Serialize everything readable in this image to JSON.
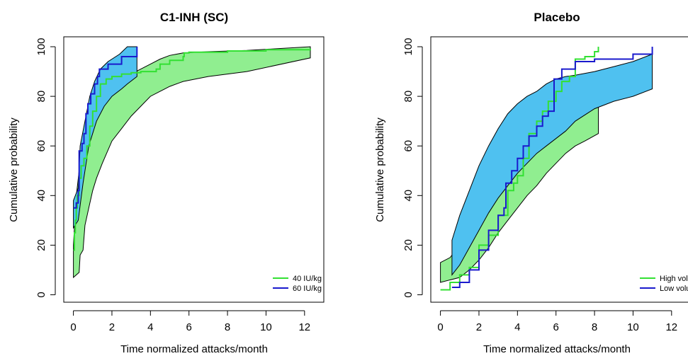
{
  "chart_data": [
    {
      "type": "line",
      "title": "C1-INH (SC)",
      "xlabel": "Time normalized attacks/month",
      "ylabel": "Cumulative probability",
      "xlim": [
        -0.5,
        13
      ],
      "ylim": [
        -3,
        104
      ],
      "xticks": [
        "0",
        "2",
        "4",
        "6",
        "8",
        "10",
        "12"
      ],
      "yticks": [
        "0",
        "20",
        "40",
        "60",
        "80",
        "100"
      ],
      "legend_position": "bottom-right",
      "series": [
        {
          "name": "40 IU/kg",
          "color": "#33e033",
          "band_color": "#90ee90",
          "line": [
            [
              0,
              18
            ],
            [
              0.05,
              25
            ],
            [
              0.1,
              30
            ],
            [
              0.15,
              35
            ],
            [
              0.2,
              40
            ],
            [
              0.3,
              47
            ],
            [
              0.4,
              52
            ],
            [
              0.55,
              55
            ],
            [
              0.7,
              60
            ],
            [
              0.85,
              68
            ],
            [
              1.0,
              74
            ],
            [
              1.2,
              80
            ],
            [
              1.4,
              85
            ],
            [
              1.7,
              87
            ],
            [
              2,
              88
            ],
            [
              2.5,
              89
            ],
            [
              3,
              89.5
            ],
            [
              3.5,
              90
            ],
            [
              4,
              90
            ],
            [
              4.3,
              91
            ],
            [
              4.5,
              93
            ],
            [
              5,
              94.5
            ],
            [
              5.7,
              96
            ],
            [
              5.75,
              97.5
            ],
            [
              6,
              97.8
            ],
            [
              8,
              98.3
            ],
            [
              10,
              98.8
            ],
            [
              12.3,
              99.2
            ]
          ],
          "band_upper": [
            [
              0,
              20
            ],
            [
              0.15,
              40
            ],
            [
              0.3,
              50
            ],
            [
              0.6,
              62
            ],
            [
              0.9,
              70
            ],
            [
              1.2,
              75
            ],
            [
              1.6,
              80
            ],
            [
              2,
              84
            ],
            [
              2.5,
              87
            ],
            [
              3,
              89
            ],
            [
              3.5,
              91
            ],
            [
              4,
              93
            ],
            [
              4.5,
              95
            ],
            [
              5,
              96.5
            ],
            [
              5.7,
              97.5
            ],
            [
              7,
              98
            ],
            [
              9,
              98.5
            ],
            [
              12.3,
              100
            ]
          ],
          "band_lower": [
            [
              0,
              7
            ],
            [
              0.3,
              9
            ],
            [
              0.35,
              16
            ],
            [
              0.5,
              18
            ],
            [
              0.6,
              28
            ],
            [
              0.8,
              35
            ],
            [
              1.0,
              42
            ],
            [
              1.2,
              47
            ],
            [
              1.5,
              53
            ],
            [
              2,
              62
            ],
            [
              2.5,
              67
            ],
            [
              3,
              72
            ],
            [
              3.5,
              76
            ],
            [
              4,
              80
            ],
            [
              4.5,
              82
            ],
            [
              5,
              84
            ],
            [
              5.7,
              86
            ],
            [
              7,
              88
            ],
            [
              9,
              90
            ],
            [
              12.3,
              95.5
            ]
          ]
        },
        {
          "name": "60 IU/kg",
          "color": "#1a1acd",
          "band_color": "#4fc1f0",
          "line": [
            [
              0,
              35
            ],
            [
              0.15,
              37
            ],
            [
              0.25,
              42
            ],
            [
              0.3,
              58
            ],
            [
              0.45,
              61
            ],
            [
              0.55,
              65
            ],
            [
              0.65,
              73
            ],
            [
              0.75,
              77
            ],
            [
              0.9,
              81
            ],
            [
              1.1,
              85
            ],
            [
              1.25,
              88
            ],
            [
              1.35,
              91
            ],
            [
              1.8,
              93
            ],
            [
              2.5,
              96
            ],
            [
              3.3,
              100
            ]
          ],
          "band_upper": [
            [
              0,
              38
            ],
            [
              0.25,
              43
            ],
            [
              0.35,
              60
            ],
            [
              0.6,
              70
            ],
            [
              0.85,
              80
            ],
            [
              1.1,
              86
            ],
            [
              1.4,
              91
            ],
            [
              1.8,
              94
            ],
            [
              2.4,
              97
            ],
            [
              2.8,
              100
            ],
            [
              3.3,
              100
            ]
          ],
          "band_lower": [
            [
              0,
              27
            ],
            [
              0.25,
              30
            ],
            [
              0.35,
              36
            ],
            [
              0.5,
              45
            ],
            [
              0.8,
              60
            ],
            [
              1.2,
              70
            ],
            [
              1.6,
              76
            ],
            [
              2,
              80
            ],
            [
              2.5,
              83
            ],
            [
              2.8,
              85
            ],
            [
              3.3,
              88
            ]
          ]
        }
      ]
    },
    {
      "type": "line",
      "title": "Placebo",
      "xlabel": "Time normalized attacks/month",
      "ylabel": "Cumulative probability",
      "xlim": [
        -0.5,
        13
      ],
      "ylim": [
        -3,
        104
      ],
      "xticks": [
        "0",
        "2",
        "4",
        "6",
        "8",
        "10",
        "12"
      ],
      "yticks": [
        "0",
        "20",
        "40",
        "60",
        "80",
        "100"
      ],
      "legend_position": "bottom-right",
      "series": [
        {
          "name": "High volume",
          "color": "#33e033",
          "band_color": "#90ee90",
          "line": [
            [
              0,
              2
            ],
            [
              0.5,
              5
            ],
            [
              1,
              8
            ],
            [
              1.5,
              11
            ],
            [
              2,
              20
            ],
            [
              2.5,
              24
            ],
            [
              3,
              32
            ],
            [
              3.5,
              42
            ],
            [
              3.8,
              45
            ],
            [
              4,
              48
            ],
            [
              4.3,
              55
            ],
            [
              4.6,
              65
            ],
            [
              5,
              70
            ],
            [
              5.3,
              74
            ],
            [
              5.6,
              78
            ],
            [
              6,
              82
            ],
            [
              6.3,
              86
            ],
            [
              6.7,
              88
            ],
            [
              7,
              95
            ],
            [
              7.5,
              96
            ],
            [
              8,
              98
            ],
            [
              8.2,
              100
            ]
          ],
          "band_upper": [
            [
              0,
              13
            ],
            [
              0.5,
              15
            ],
            [
              1,
              20
            ],
            [
              1.5,
              26
            ],
            [
              2,
              32
            ],
            [
              2.5,
              38
            ],
            [
              3,
              45
            ],
            [
              3.5,
              52
            ],
            [
              4,
              57
            ],
            [
              4.5,
              63
            ],
            [
              5,
              67
            ],
            [
              5.5,
              71
            ],
            [
              6,
              75
            ],
            [
              6.5,
              78
            ],
            [
              7,
              80
            ],
            [
              7.5,
              82
            ],
            [
              8.2,
              85
            ]
          ],
          "band_lower": [
            [
              0,
              5
            ],
            [
              1,
              7
            ],
            [
              1.5,
              10
            ],
            [
              2,
              14
            ],
            [
              2.5,
              19
            ],
            [
              3,
              25
            ],
            [
              3.5,
              30
            ],
            [
              4,
              35
            ],
            [
              4.5,
              40
            ],
            [
              5,
              44
            ],
            [
              5.5,
              49
            ],
            [
              6,
              53
            ],
            [
              6.5,
              57
            ],
            [
              7,
              60
            ],
            [
              7.5,
              62
            ],
            [
              8.2,
              65
            ]
          ]
        },
        {
          "name": "Low volume",
          "color": "#1a1acd",
          "band_color": "#4fc1f0",
          "line": [
            [
              0.6,
              3
            ],
            [
              1,
              5
            ],
            [
              1.5,
              10
            ],
            [
              2,
              18
            ],
            [
              2.5,
              26
            ],
            [
              3,
              32
            ],
            [
              3.3,
              35
            ],
            [
              3.4,
              45
            ],
            [
              3.7,
              50
            ],
            [
              4,
              55
            ],
            [
              4.3,
              60
            ],
            [
              4.6,
              64
            ],
            [
              5,
              68
            ],
            [
              5.3,
              72
            ],
            [
              5.6,
              74
            ],
            [
              5.9,
              87
            ],
            [
              6.3,
              91
            ],
            [
              7,
              94
            ],
            [
              8,
              95
            ],
            [
              10,
              97
            ],
            [
              11,
              100
            ]
          ],
          "band_upper": [
            [
              0.6,
              22
            ],
            [
              1,
              32
            ],
            [
              1.5,
              42
            ],
            [
              2,
              52
            ],
            [
              2.5,
              60
            ],
            [
              3,
              67
            ],
            [
              3.5,
              73
            ],
            [
              4,
              77
            ],
            [
              4.5,
              80
            ],
            [
              5,
              82
            ],
            [
              5.5,
              85
            ],
            [
              6,
              87
            ],
            [
              6.5,
              88
            ],
            [
              7,
              88.5
            ],
            [
              8,
              90
            ],
            [
              9,
              92
            ],
            [
              10,
              94
            ],
            [
              11,
              97
            ]
          ],
          "band_lower": [
            [
              0.6,
              8
            ],
            [
              1,
              12
            ],
            [
              1.5,
              19
            ],
            [
              2,
              26
            ],
            [
              2.5,
              33
            ],
            [
              3,
              39
            ],
            [
              3.5,
              44
            ],
            [
              4,
              49
            ],
            [
              4.5,
              53
            ],
            [
              5,
              57
            ],
            [
              5.5,
              60
            ],
            [
              6,
              63
            ],
            [
              6.5,
              66
            ],
            [
              7,
              70
            ],
            [
              8,
              75
            ],
            [
              9,
              78
            ],
            [
              10,
              80
            ],
            [
              11,
              83
            ]
          ]
        }
      ]
    }
  ]
}
